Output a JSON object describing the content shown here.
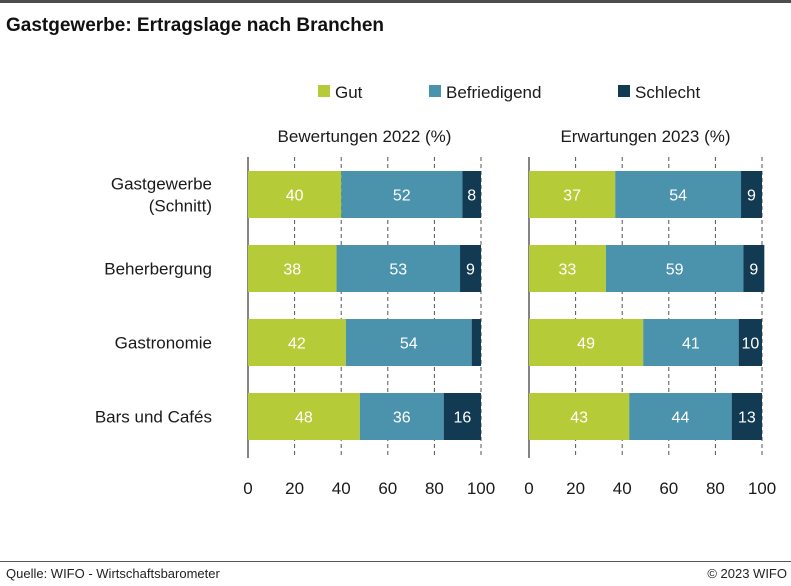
{
  "title": "Gastgewerbe: Ertragslage nach Branchen",
  "source": "Quelle: WIFO - Wirtschaftsbarometer",
  "copyright": "© 2023 WIFO",
  "colors": {
    "gut": "#b5cc38",
    "befriedigend": "#4b93ad",
    "schlecht": "#123a53"
  },
  "chart_data": [
    {
      "type": "bar",
      "orientation": "horizontal",
      "stacked": true,
      "title": "Bewertungen 2022 (%)",
      "categories": [
        "Gastgewerbe\n(Schnitt)",
        "Beherbergung",
        "Gastronomie",
        "Bars und Cafés"
      ],
      "series": [
        {
          "name": "Gut",
          "values": [
            40,
            38,
            42,
            48
          ]
        },
        {
          "name": "Befriedigend",
          "values": [
            52,
            53,
            54,
            36
          ]
        },
        {
          "name": "Schlecht",
          "values": [
            8,
            9,
            4,
            16
          ]
        }
      ],
      "value_labels": [
        [
          "40",
          "52",
          "8"
        ],
        [
          "38",
          "53",
          "9"
        ],
        [
          "42",
          "54",
          ""
        ],
        [
          "48",
          "36",
          "16"
        ]
      ],
      "xlim": [
        0,
        100
      ],
      "xticks": [
        "0",
        "20",
        "40",
        "60",
        "80",
        "100"
      ],
      "grid": "vertical dashed",
      "legend": "top"
    },
    {
      "type": "bar",
      "orientation": "horizontal",
      "stacked": true,
      "title": "Erwartungen 2023 (%)",
      "categories": [
        "Gastgewerbe\n(Schnitt)",
        "Beherbergung",
        "Gastronomie",
        "Bars und Cafés"
      ],
      "series": [
        {
          "name": "Gut",
          "values": [
            37,
            33,
            49,
            43
          ]
        },
        {
          "name": "Befriedigend",
          "values": [
            54,
            59,
            41,
            44
          ]
        },
        {
          "name": "Schlecht",
          "values": [
            9,
            9,
            10,
            13
          ]
        }
      ],
      "value_labels": [
        [
          "37",
          "54",
          "9"
        ],
        [
          "33",
          "59",
          "9"
        ],
        [
          "49",
          "41",
          "10"
        ],
        [
          "43",
          "44",
          "13"
        ]
      ],
      "xlim": [
        0,
        100
      ],
      "xticks": [
        "0",
        "20",
        "40",
        "60",
        "80",
        "100"
      ],
      "grid": "vertical dashed",
      "legend": "top"
    }
  ]
}
